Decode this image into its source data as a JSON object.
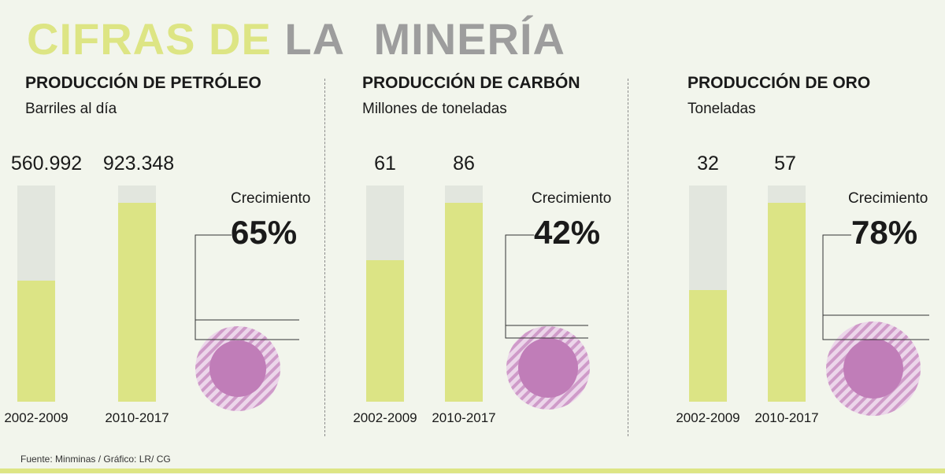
{
  "title": {
    "part1": "CIFRAS DE",
    "part2": "LA",
    "part3": "MINERÍA"
  },
  "footer": "Fuente: Minminas / Gráfico: LR/ CG",
  "colors": {
    "bar_fill": "#dce485",
    "bar_bg": "#e2e6de",
    "circle": "#c07db8",
    "circle_hatch": "#d4a3cf",
    "title_accent": "#dde584",
    "title_gray": "#9d9d9d"
  },
  "chart_data": [
    {
      "type": "bar",
      "title": "PRODUCCIÓN DE PETRÓLEO",
      "ylabel": "Barriles al día",
      "categories": [
        "2002-2009",
        "2010-2017"
      ],
      "values": [
        560.992,
        923.348
      ],
      "value_labels": [
        "560.992",
        "923.348"
      ],
      "growth_label": "Crecimiento",
      "growth": "65%",
      "growth_value": 65
    },
    {
      "type": "bar",
      "title": "PRODUCCIÓN DE CARBÓN",
      "ylabel": "Millones de toneladas",
      "categories": [
        "2002-2009",
        "2010-2017"
      ],
      "values": [
        61,
        86
      ],
      "value_labels": [
        "61",
        "86"
      ],
      "growth_label": "Crecimiento",
      "growth": "42%",
      "growth_value": 42
    },
    {
      "type": "bar",
      "title": "PRODUCCIÓN DE ORO",
      "ylabel": "Toneladas",
      "categories": [
        "2002-2009",
        "2010-2017"
      ],
      "values": [
        32,
        57
      ],
      "value_labels": [
        "32",
        "57"
      ],
      "growth_label": "Crecimiento",
      "growth": "78%",
      "growth_value": 78
    }
  ]
}
